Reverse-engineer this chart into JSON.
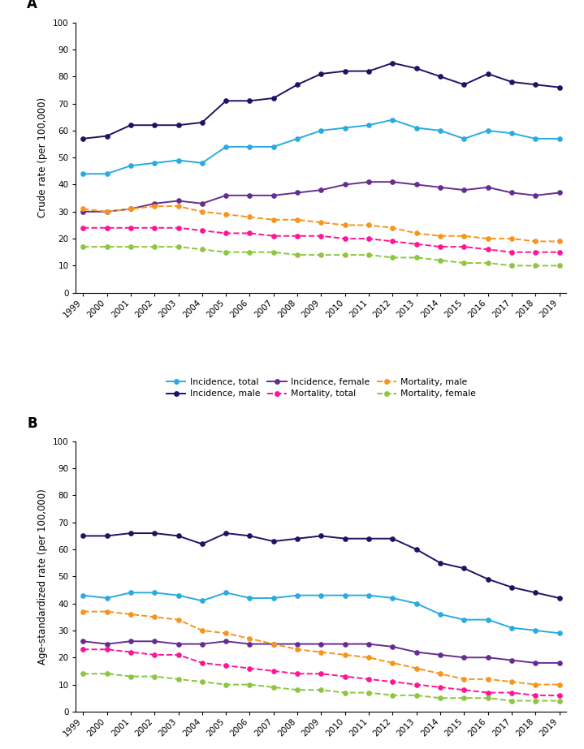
{
  "years": [
    1999,
    2000,
    2001,
    2002,
    2003,
    2004,
    2005,
    2006,
    2007,
    2008,
    2009,
    2010,
    2011,
    2012,
    2013,
    2014,
    2015,
    2016,
    2017,
    2018,
    2019
  ],
  "panel_A": {
    "incidence_total": [
      44,
      44,
      47,
      48,
      49,
      48,
      54,
      54,
      54,
      57,
      60,
      61,
      62,
      64,
      61,
      60,
      57,
      60,
      59,
      57,
      57
    ],
    "incidence_male": [
      57,
      58,
      62,
      62,
      62,
      63,
      71,
      71,
      72,
      77,
      81,
      82,
      82,
      85,
      83,
      80,
      77,
      81,
      78,
      77,
      76
    ],
    "incidence_female": [
      30,
      30,
      31,
      33,
      34,
      33,
      36,
      36,
      36,
      37,
      38,
      40,
      41,
      41,
      40,
      39,
      38,
      39,
      37,
      36,
      37
    ],
    "mortality_total": [
      24,
      24,
      24,
      24,
      24,
      23,
      22,
      22,
      21,
      21,
      21,
      20,
      20,
      19,
      18,
      17,
      17,
      16,
      15,
      15,
      15
    ],
    "mortality_male": [
      31,
      30,
      31,
      32,
      32,
      30,
      29,
      28,
      27,
      27,
      26,
      25,
      25,
      24,
      22,
      21,
      21,
      20,
      20,
      19,
      19
    ],
    "mortality_female": [
      17,
      17,
      17,
      17,
      17,
      16,
      15,
      15,
      15,
      14,
      14,
      14,
      14,
      13,
      13,
      12,
      11,
      11,
      10,
      10,
      10
    ]
  },
  "panel_B": {
    "incidence_total": [
      43,
      42,
      44,
      44,
      43,
      41,
      44,
      42,
      42,
      43,
      43,
      43,
      43,
      42,
      40,
      36,
      34,
      34,
      31,
      30,
      29
    ],
    "incidence_male": [
      65,
      65,
      66,
      66,
      65,
      62,
      66,
      65,
      63,
      64,
      65,
      64,
      64,
      64,
      60,
      55,
      53,
      49,
      46,
      44,
      42
    ],
    "incidence_female": [
      26,
      25,
      26,
      26,
      25,
      25,
      26,
      25,
      25,
      25,
      25,
      25,
      25,
      24,
      22,
      21,
      20,
      20,
      19,
      18,
      18
    ],
    "mortality_total": [
      23,
      23,
      22,
      21,
      21,
      18,
      17,
      16,
      15,
      14,
      14,
      13,
      12,
      11,
      10,
      9,
      8,
      7,
      7,
      6,
      6
    ],
    "mortality_male": [
      37,
      37,
      36,
      35,
      34,
      30,
      29,
      27,
      25,
      23,
      22,
      21,
      20,
      18,
      16,
      14,
      12,
      12,
      11,
      10,
      10
    ],
    "mortality_female": [
      14,
      14,
      13,
      13,
      12,
      11,
      10,
      10,
      9,
      8,
      8,
      7,
      7,
      6,
      6,
      5,
      5,
      5,
      4,
      4,
      4
    ]
  },
  "colors": {
    "incidence_total": "#29ABE2",
    "incidence_male": "#1B1464",
    "incidence_female": "#662D91",
    "mortality_total": "#FF1493",
    "mortality_male": "#F7941D",
    "mortality_female": "#8DC63F"
  },
  "legend_labels": {
    "incidence_total": "Incidence, total",
    "incidence_male": "Incidence, male",
    "incidence_female": "Incidence, female",
    "mortality_total": "Mortality, total",
    "mortality_male": "Mortality, male",
    "mortality_female": "Mortality, female"
  },
  "legend_order": [
    "incidence_total",
    "incidence_male",
    "incidence_female",
    "mortality_total",
    "mortality_male",
    "mortality_female"
  ],
  "panel_A_ylabel": "Crude rate (per 100,000)",
  "panel_B_ylabel": "Age-standardized rate (per 100,000)",
  "ylim": [
    0,
    100
  ],
  "yticks": [
    0,
    10,
    20,
    30,
    40,
    50,
    60,
    70,
    80,
    90,
    100
  ],
  "background_color": "#ffffff"
}
